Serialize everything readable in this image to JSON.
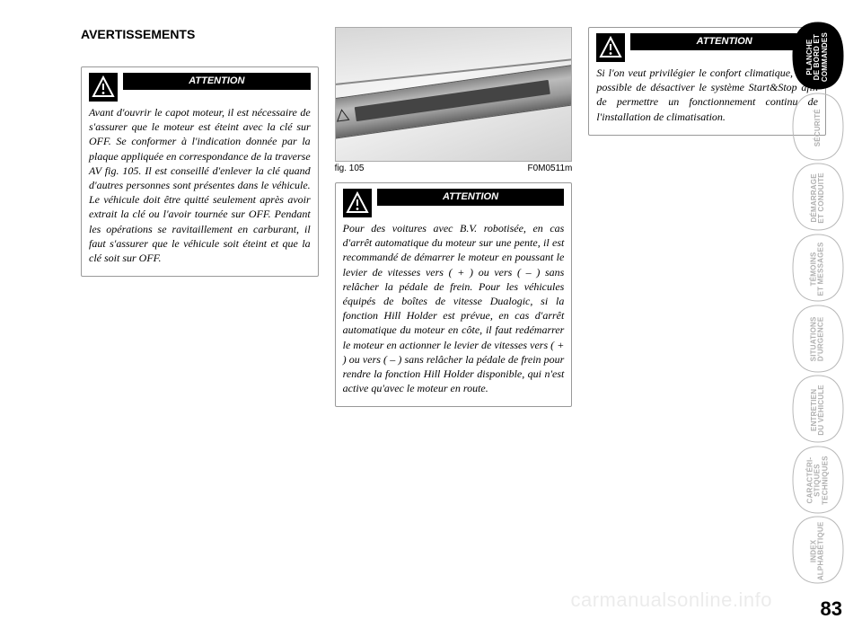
{
  "heading": "AVERTISSEMENTS",
  "warnings": {
    "title": "ATTENTION",
    "box1": "Avant d'ouvrir le capot moteur, il est nécessaire de s'assurer que le moteur est éteint avec la clé sur OFF. Se conformer à l'indication donnée par la plaque appliquée en correspondance de la traverse AV fig. 105. Il est conseillé d'enlever la clé quand d'autres personnes sont présentes dans le véhicule. Le véhicule doit être quitté seulement après avoir extrait la clé ou l'avoir tournée sur OFF. Pendant les opérations se ravitaillement en carburant, il faut s'assurer que le véhicule soit éteint et que la clé soit sur OFF.",
    "box2": "Pour des voitures avec B.V. robotisée, en cas d'arrêt automatique du moteur sur une pente, il est recommandé de démarrer le moteur en poussant le levier de vitesses vers ( + ) ou vers ( – ) sans relâcher la pédale de frein. Pour les véhicules équipés de boîtes de vitesse Dualogic, si la fonction Hill Holder est prévue, en cas d'arrêt automatique du moteur en côte, il faut redémarrer le moteur en actionner le levier de vitesses vers ( + ) ou vers ( – ) sans relâcher la pédale de frein pour rendre la fonction Hill Holder disponible, qui n'est active qu'avec le moteur en route.",
    "box3": "Si l'on veut privilégier le confort climatique, il est possible de désactiver le système Start&Stop afin de permettre un fonctionnement continu de l'installation de climatisation."
  },
  "figure": {
    "label": "fig. 105",
    "code": "F0M0511m"
  },
  "tabs": [
    {
      "label": "PLANCHE\nDE BORD ET\nCOMMANDES",
      "active": true
    },
    {
      "label": "SÉCURITÉ",
      "active": false
    },
    {
      "label": "DÉMARRAGE\nET CONDUITE",
      "active": false
    },
    {
      "label": "TÉMOINS\nET MESSAGES",
      "active": false
    },
    {
      "label": "SITUATIONS\nD'URGENCE",
      "active": false
    },
    {
      "label": "ENTRETIEN\nDU VÉHICULE",
      "active": false
    },
    {
      "label": "CARACTÉRI-\nSTIQUES\nTECHNIQUES",
      "active": false
    },
    {
      "label": "INDEX\nALPHABÉTIQUE",
      "active": false
    }
  ],
  "colors": {
    "tab_active_fill": "#000000",
    "tab_inactive_stroke": "#b8b8b8",
    "text": "#000000",
    "watermark": "rgba(0,0,0,0.08)"
  },
  "page_number": "83",
  "watermark": "carmanualsonline.info"
}
